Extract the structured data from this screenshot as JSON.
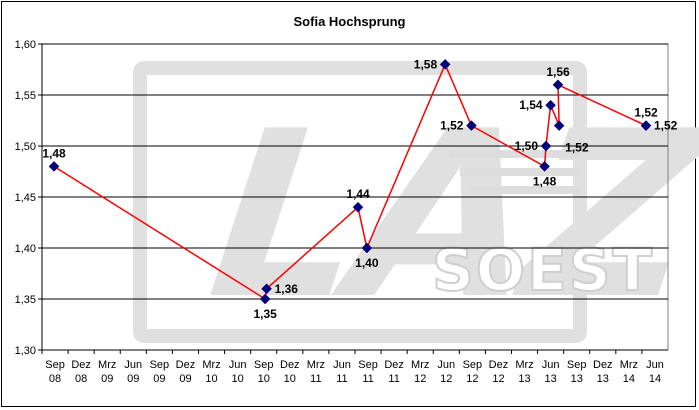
{
  "chart_data": {
    "type": "line",
    "title": "Sofia Hochsprung",
    "xlabel": "",
    "ylabel": "",
    "ylim": [
      1.3,
      1.6
    ],
    "y_ticks": [
      "1,30",
      "1,35",
      "1,40",
      "1,45",
      "1,50",
      "1,55",
      "1,60"
    ],
    "x_ticks": [
      {
        "month": "Sep",
        "year": "08"
      },
      {
        "month": "Dez",
        "year": "08"
      },
      {
        "month": "Mrz",
        "year": "09"
      },
      {
        "month": "Jun",
        "year": "09"
      },
      {
        "month": "Sep",
        "year": "09"
      },
      {
        "month": "Dez",
        "year": "09"
      },
      {
        "month": "Mrz",
        "year": "10"
      },
      {
        "month": "Jun",
        "year": "10"
      },
      {
        "month": "Sep",
        "year": "10"
      },
      {
        "month": "Dez",
        "year": "10"
      },
      {
        "month": "Mrz",
        "year": "11"
      },
      {
        "month": "Jun",
        "year": "11"
      },
      {
        "month": "Sep",
        "year": "11"
      },
      {
        "month": "Dez",
        "year": "11"
      },
      {
        "month": "Mrz",
        "year": "12"
      },
      {
        "month": "Jun",
        "year": "12"
      },
      {
        "month": "Sep",
        "year": "12"
      },
      {
        "month": "Dez",
        "year": "12"
      },
      {
        "month": "Mrz",
        "year": "13"
      },
      {
        "month": "Jun",
        "year": "13"
      },
      {
        "month": "Sep",
        "year": "13"
      },
      {
        "month": "Dez",
        "year": "13"
      },
      {
        "month": "Mrz",
        "year": "14"
      },
      {
        "month": "Jun",
        "year": "14"
      }
    ],
    "grid": true,
    "legend": "none",
    "series": [
      {
        "name": "",
        "color": "#ff0000",
        "marker_color": "#000080",
        "points": [
          {
            "x": "2008-09-01",
            "y": 1.48,
            "label": "1,48",
            "label_pos": "above"
          },
          {
            "x": "2010-09-10",
            "y": 1.35,
            "label": "1,35",
            "label_pos": "below"
          },
          {
            "x": "2010-09-15",
            "y": 1.36,
            "label": "1,36",
            "label_pos": "right"
          },
          {
            "x": "2011-08-01",
            "y": 1.44,
            "label": "1,44",
            "label_pos": "above"
          },
          {
            "x": "2011-09-01",
            "y": 1.4,
            "label": "1,40",
            "label_pos": "below"
          },
          {
            "x": "2012-06-01",
            "y": 1.58,
            "label": "1,58",
            "label_pos": "left"
          },
          {
            "x": "2012-09-01",
            "y": 1.52,
            "label": "1,52",
            "label_pos": "left"
          },
          {
            "x": "2013-05-15",
            "y": 1.48,
            "label": "1,48",
            "label_pos": "below"
          },
          {
            "x": "2013-05-20",
            "y": 1.5,
            "label": "1,50",
            "label_pos": "left"
          },
          {
            "x": "2013-06-05",
            "y": 1.54,
            "label": "1,54",
            "label_pos": "left"
          },
          {
            "x": "2013-07-05",
            "y": 1.52,
            "label": "1,52",
            "label_pos": "below-right"
          },
          {
            "x": "2013-07-01",
            "y": 1.56,
            "label": "1,56",
            "label_pos": "above"
          },
          {
            "x": "2014-05-05",
            "y": 1.52,
            "label": "1,52",
            "label_pos": "above"
          },
          {
            "x": "2014-05-05",
            "y": 1.52,
            "label": "1,52",
            "label_pos": "right"
          }
        ]
      }
    ],
    "watermark": {
      "big_text": "LAZ",
      "sub_text": "SOEST"
    }
  }
}
